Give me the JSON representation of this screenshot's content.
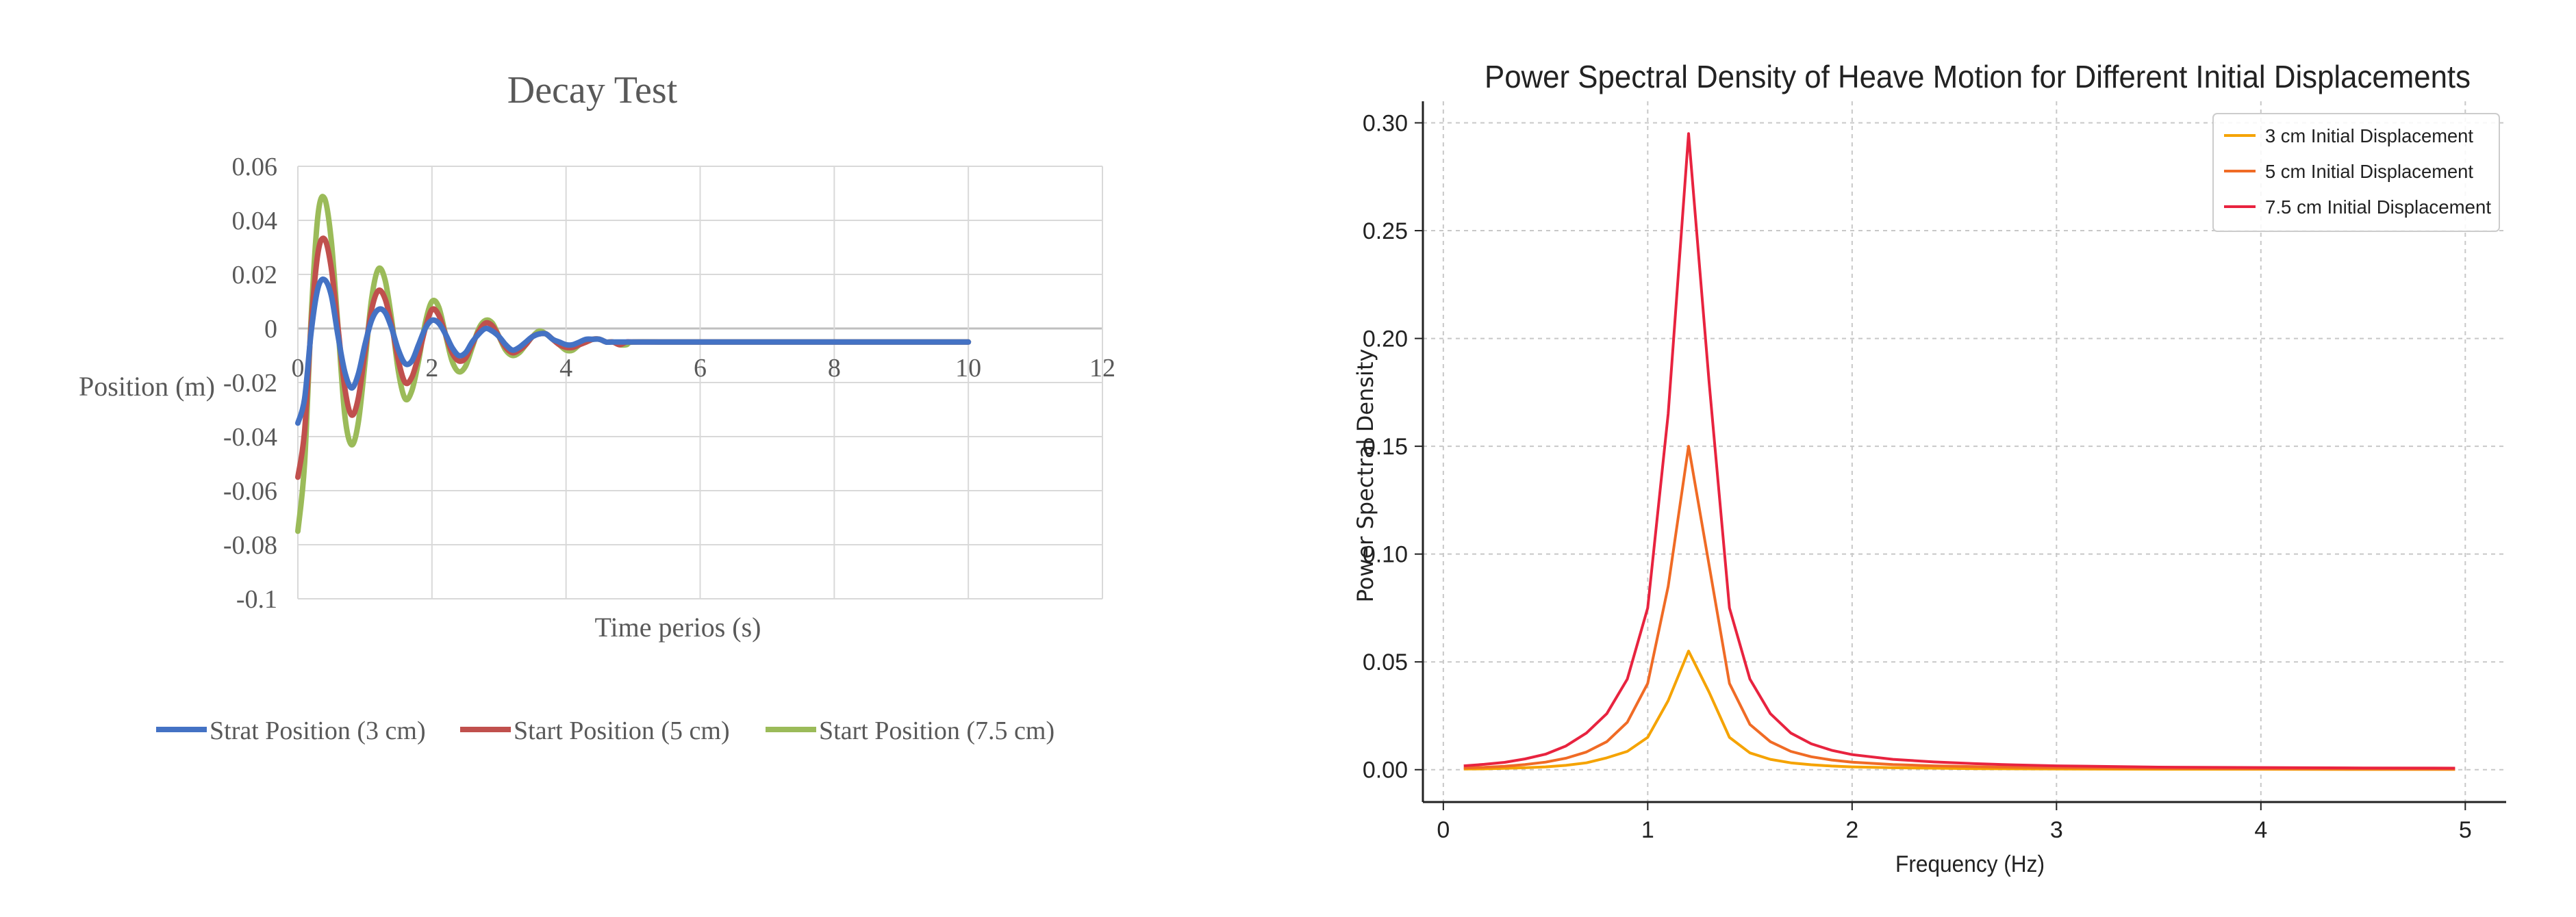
{
  "chart_data": [
    {
      "type": "line",
      "title": "Decay Test",
      "xlabel": "Time perios (s)",
      "ylabel": "Position (m)",
      "xlim": [
        0,
        12
      ],
      "ylim": [
        -0.1,
        0.06
      ],
      "xticks": [
        0,
        2,
        4,
        6,
        8,
        10,
        12
      ],
      "xtick_labels": [
        "0",
        "2",
        "4",
        "6",
        "8",
        "10",
        "12"
      ],
      "yticks": [
        -0.1,
        -0.08,
        -0.06,
        -0.04,
        -0.02,
        0,
        0.02,
        0.04,
        0.06
      ],
      "ytick_labels": [
        "-0.1",
        "-0.08",
        "-0.06",
        "-0.04",
        "-0.02",
        "0",
        "0.02",
        "0.04",
        "0.06"
      ],
      "grid": true,
      "legend_position": "bottom",
      "series": [
        {
          "name": "Strat Position (3 cm)",
          "color": "#4472c4",
          "x": [
            0,
            0.1,
            0.2,
            0.3,
            0.4,
            0.5,
            0.6,
            0.7,
            0.8,
            0.9,
            1.0,
            1.1,
            1.2,
            1.3,
            1.4,
            1.5,
            1.6,
            1.7,
            1.8,
            1.9,
            2.0,
            2.1,
            2.2,
            2.3,
            2.4,
            2.5,
            2.6,
            2.7,
            2.8,
            2.9,
            3.0,
            3.1,
            3.2,
            3.3,
            3.4,
            3.5,
            3.6,
            3.7,
            3.8,
            3.9,
            4.0,
            4.1,
            4.2,
            4.3,
            4.4,
            4.5,
            4.6,
            4.7,
            4.8,
            4.9,
            5.0,
            5.5,
            6.0,
            6.5,
            7.0,
            7.5,
            8.0,
            8.5,
            9.0,
            9.5,
            10.0
          ],
          "y": [
            -0.035,
            -0.026,
            -0.001,
            0.015,
            0.018,
            0.012,
            -0.003,
            -0.016,
            -0.022,
            -0.017,
            -0.006,
            0.003,
            0.007,
            0.006,
            0.0,
            -0.008,
            -0.013,
            -0.012,
            -0.006,
            0.0,
            0.003,
            0.002,
            -0.002,
            -0.007,
            -0.01,
            -0.009,
            -0.005,
            -0.002,
            0.0,
            -0.001,
            -0.003,
            -0.006,
            -0.008,
            -0.007,
            -0.005,
            -0.003,
            -0.002,
            -0.002,
            -0.004,
            -0.005,
            -0.006,
            -0.006,
            -0.005,
            -0.004,
            -0.004,
            -0.004,
            -0.005,
            -0.005,
            -0.005,
            -0.005,
            -0.005,
            -0.005,
            -0.005,
            -0.005,
            -0.005,
            -0.005,
            -0.005,
            -0.005,
            -0.005,
            -0.005,
            -0.005
          ]
        },
        {
          "name": "Start Position (5 cm)",
          "color": "#c0504d",
          "x": [
            0,
            0.1,
            0.2,
            0.3,
            0.4,
            0.5,
            0.6,
            0.7,
            0.8,
            0.9,
            1.0,
            1.1,
            1.2,
            1.3,
            1.4,
            1.5,
            1.6,
            1.7,
            1.8,
            1.9,
            2.0,
            2.1,
            2.2,
            2.3,
            2.4,
            2.5,
            2.6,
            2.7,
            2.8,
            2.9,
            3.0,
            3.1,
            3.2,
            3.3,
            3.4,
            3.5,
            3.6,
            3.7,
            3.8,
            3.9,
            4.0,
            4.1,
            4.2,
            4.3,
            4.4,
            4.5,
            4.6,
            4.7,
            4.8,
            4.9,
            5.0,
            5.5,
            6.0,
            6.5,
            7.0,
            7.5,
            8.0,
            8.5,
            9.0,
            9.5,
            10.0
          ],
          "y": [
            -0.055,
            -0.038,
            0.002,
            0.028,
            0.033,
            0.022,
            0.0,
            -0.022,
            -0.032,
            -0.026,
            -0.009,
            0.007,
            0.014,
            0.011,
            0.001,
            -0.012,
            -0.02,
            -0.018,
            -0.01,
            0.0,
            0.007,
            0.005,
            -0.002,
            -0.009,
            -0.012,
            -0.011,
            -0.006,
            -0.001,
            0.002,
            0.001,
            -0.003,
            -0.007,
            -0.009,
            -0.008,
            -0.006,
            -0.003,
            -0.002,
            -0.002,
            -0.004,
            -0.006,
            -0.007,
            -0.007,
            -0.006,
            -0.005,
            -0.004,
            -0.004,
            -0.005,
            -0.005,
            -0.006,
            -0.005,
            -0.005,
            -0.005,
            -0.005,
            -0.005,
            -0.005,
            -0.005,
            -0.005,
            -0.005,
            -0.005,
            -0.005,
            -0.005
          ]
        },
        {
          "name": "Start Position (7.5 cm)",
          "color": "#9bbb59",
          "x": [
            0,
            0.1,
            0.2,
            0.3,
            0.4,
            0.5,
            0.6,
            0.7,
            0.8,
            0.9,
            1.0,
            1.1,
            1.2,
            1.3,
            1.4,
            1.5,
            1.6,
            1.7,
            1.8,
            1.9,
            2.0,
            2.1,
            2.2,
            2.3,
            2.4,
            2.5,
            2.6,
            2.7,
            2.8,
            2.9,
            3.0,
            3.1,
            3.2,
            3.3,
            3.4,
            3.5,
            3.6,
            3.7,
            3.8,
            3.9,
            4.0,
            4.1,
            4.2,
            4.3,
            4.4,
            4.5,
            4.6,
            4.7,
            4.8,
            4.9,
            5.0,
            5.5,
            6.0,
            6.5,
            7.0,
            7.5,
            8.0,
            8.5,
            9.0,
            9.5,
            10.0
          ],
          "y": [
            -0.075,
            -0.05,
            0.005,
            0.042,
            0.048,
            0.032,
            0.0,
            -0.032,
            -0.043,
            -0.035,
            -0.013,
            0.011,
            0.022,
            0.018,
            0.003,
            -0.016,
            -0.026,
            -0.023,
            -0.012,
            0.002,
            0.01,
            0.008,
            -0.002,
            -0.012,
            -0.016,
            -0.014,
            -0.007,
            0.0,
            0.003,
            0.002,
            -0.003,
            -0.008,
            -0.01,
            -0.009,
            -0.006,
            -0.003,
            -0.001,
            -0.002,
            -0.004,
            -0.006,
            -0.008,
            -0.008,
            -0.006,
            -0.005,
            -0.004,
            -0.004,
            -0.005,
            -0.005,
            -0.006,
            -0.006,
            -0.005,
            -0.005,
            -0.005,
            -0.005,
            -0.005,
            -0.005,
            -0.005,
            -0.005,
            -0.005,
            -0.005,
            -0.005
          ]
        }
      ]
    },
    {
      "type": "line",
      "title": "Power Spectral Density of Heave Motion for Different Initial Displacements",
      "xlabel": "Frequency (Hz)",
      "ylabel": "Power Spectral Density",
      "xlim": [
        -0.1,
        5.2
      ],
      "ylim": [
        -0.015,
        0.31
      ],
      "xticks": [
        0,
        1,
        2,
        3,
        4,
        5
      ],
      "xtick_labels": [
        "0",
        "1",
        "2",
        "3",
        "4",
        "5"
      ],
      "yticks": [
        0,
        0.05,
        0.1,
        0.15,
        0.2,
        0.25,
        0.3
      ],
      "ytick_labels": [
        "0.00",
        "0.05",
        "0.10",
        "0.15",
        "0.20",
        "0.25",
        "0.30"
      ],
      "grid": true,
      "legend_position": "top-right",
      "series": [
        {
          "name": "3 cm Initial Displacement",
          "color": "#f5a300",
          "x": [
            0.1,
            0.2,
            0.3,
            0.4,
            0.5,
            0.6,
            0.7,
            0.8,
            0.9,
            1.0,
            1.1,
            1.2,
            1.3,
            1.4,
            1.5,
            1.6,
            1.7,
            1.8,
            1.9,
            2.0,
            2.2,
            2.4,
            2.6,
            2.8,
            3.0,
            3.5,
            4.0,
            4.5,
            4.95
          ],
          "y": [
            0.0003,
            0.0004,
            0.0006,
            0.0009,
            0.0013,
            0.002,
            0.0032,
            0.0055,
            0.0085,
            0.015,
            0.032,
            0.055,
            0.036,
            0.015,
            0.0078,
            0.0048,
            0.0032,
            0.0023,
            0.0017,
            0.0013,
            0.0009,
            0.0007,
            0.0005,
            0.0004,
            0.0003,
            0.0002,
            0.0002,
            0.0001,
            0.0001
          ]
        },
        {
          "name": "5 cm Initial Displacement",
          "color": "#f06b25",
          "x": [
            0.1,
            0.2,
            0.3,
            0.4,
            0.5,
            0.6,
            0.7,
            0.8,
            0.9,
            1.0,
            1.1,
            1.2,
            1.3,
            1.4,
            1.5,
            1.6,
            1.7,
            1.8,
            1.9,
            2.0,
            2.2,
            2.4,
            2.6,
            2.8,
            3.0,
            3.5,
            4.0,
            4.5,
            4.95
          ],
          "y": [
            0.0008,
            0.0011,
            0.0016,
            0.0024,
            0.0035,
            0.0053,
            0.0082,
            0.013,
            0.022,
            0.04,
            0.085,
            0.15,
            0.095,
            0.04,
            0.021,
            0.013,
            0.0085,
            0.006,
            0.0045,
            0.0035,
            0.0024,
            0.0018,
            0.0014,
            0.0011,
            0.0009,
            0.0006,
            0.0005,
            0.0004,
            0.0003
          ]
        },
        {
          "name": "7.5 cm Initial Displacement",
          "color": "#e8233f",
          "x": [
            0.1,
            0.2,
            0.3,
            0.4,
            0.5,
            0.6,
            0.7,
            0.8,
            0.9,
            1.0,
            1.1,
            1.2,
            1.3,
            1.4,
            1.5,
            1.6,
            1.7,
            1.8,
            1.9,
            2.0,
            2.2,
            2.4,
            2.6,
            2.8,
            3.0,
            3.5,
            4.0,
            4.5,
            4.95
          ],
          "y": [
            0.0018,
            0.0025,
            0.0034,
            0.005,
            0.0072,
            0.011,
            0.017,
            0.026,
            0.042,
            0.075,
            0.165,
            0.295,
            0.18,
            0.075,
            0.042,
            0.026,
            0.017,
            0.012,
            0.009,
            0.007,
            0.0048,
            0.0036,
            0.0028,
            0.0022,
            0.0018,
            0.0012,
            0.001,
            0.0008,
            0.0007
          ]
        }
      ]
    }
  ]
}
